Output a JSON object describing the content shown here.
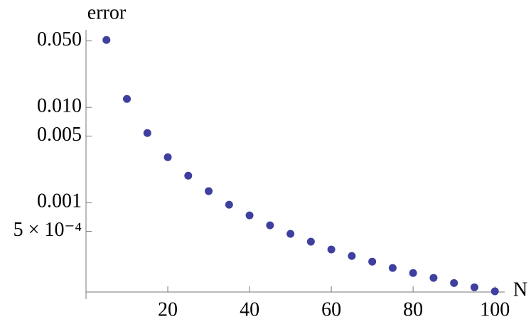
{
  "chart_data": {
    "type": "scatter",
    "x_label": "N",
    "y_label": "error",
    "x": [
      5,
      10,
      15,
      20,
      25,
      30,
      35,
      40,
      45,
      50,
      55,
      60,
      65,
      70,
      75,
      80,
      85,
      90,
      95,
      100
    ],
    "series": [
      {
        "color": "#3f3f9f",
        "values": [
          0.0512,
          0.0123,
          0.00538,
          0.003,
          0.00192,
          0.00132,
          0.00095,
          0.000734,
          0.000577,
          0.00047,
          0.000389,
          0.000322,
          0.000275,
          0.00024,
          0.000206,
          0.000182,
          0.000162,
          0.000143,
          0.000129,
          0.000117
        ]
      }
    ],
    "xlim": [
      0,
      102.4
    ],
    "xticks": [
      20,
      40,
      60,
      80,
      100
    ],
    "ylim": [
      0.000115,
      0.06
    ],
    "ylog": true,
    "yticks": [
      {
        "value": 0.05,
        "label": "0.050"
      },
      {
        "value": 0.01,
        "label": "0.010"
      },
      0.005,
      0.001,
      {
        "value": 0.0005,
        "label": "5 × 10⁻⁴"
      }
    ]
  }
}
